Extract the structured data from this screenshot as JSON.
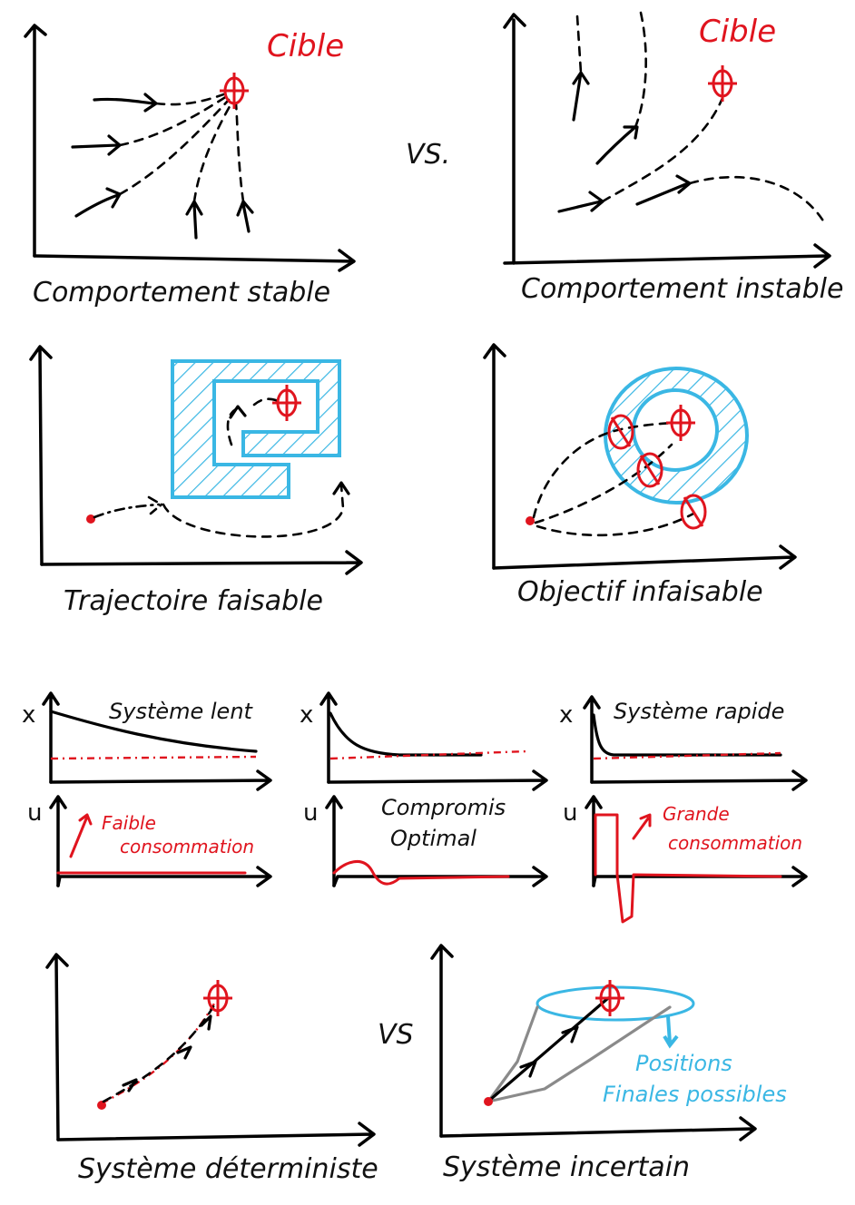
{
  "panels": {
    "stable": {
      "caption": "Comportement stable",
      "target_label": "Cible"
    },
    "vs_1": "VS.",
    "unstable": {
      "caption": "Comportement instable",
      "target_label": "Cible"
    },
    "feasible": {
      "caption": "Trajectoire faisable"
    },
    "infeasible": {
      "caption": "Objectif infaisable"
    },
    "slow": {
      "title": "Système lent",
      "x_axis": "x",
      "u_axis": "u",
      "note": [
        "Faible",
        "consommation"
      ]
    },
    "optimal": {
      "title": "Compromis",
      "title2": "Optimal",
      "x_axis": "x",
      "u_axis": "u"
    },
    "fast": {
      "title": "Système rapide",
      "x_axis": "x",
      "u_axis": "u",
      "note": [
        "Grande",
        "consommation"
      ]
    },
    "deterministic": {
      "caption": "Système déterministe"
    },
    "vs_2": "VS",
    "uncertain": {
      "caption": "Système incertain",
      "note": [
        "Positions",
        "Finales possibles"
      ]
    }
  },
  "colors": {
    "target": "#e0141e",
    "constraint": "#3ab7e4",
    "uncertain_paths": "#8a8a8a",
    "ink": "#000000"
  },
  "icons": {
    "target": "crosshair-target-icon"
  }
}
